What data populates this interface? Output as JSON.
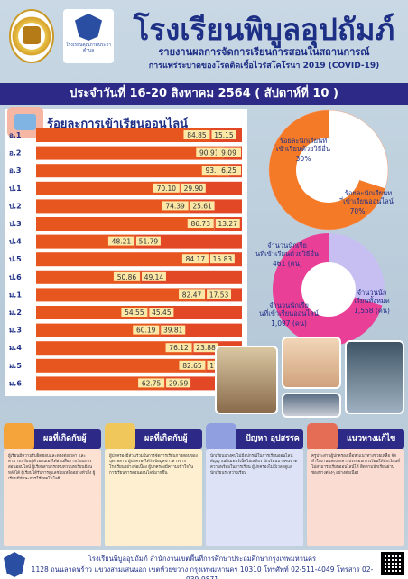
{
  "header": {
    "school_name": "โรงเรียนพิบูลอุปถัมภ์",
    "logo2_text": "โรงเรียนคุณภาพประจำตำบล",
    "report_title": "รายงานผลการจัดการเรียนการสอนในสถานการณ์",
    "report_subtitle": "การแพร่ระบาดของโรคติดเชื้อไวรัสโคโรนา 2019 (COVID-19)"
  },
  "date_band": "ประจำวันที่ 16-20 สิงหาคม 2564 ( สัปดาห์ที่ 10 )",
  "colors": {
    "online": "#e8561f",
    "onsite": "#ef7d3a",
    "dark_bar": "#e24726",
    "donut_pink": "#ea3f97",
    "donut_purple": "#c7bff2",
    "donut_orange": "#f47a28",
    "navy": "#2c2a86"
  },
  "chart_data": [
    {
      "type": "bar",
      "title": "ร้อยละการเข้าเรียนออนไลน์",
      "stacked": true,
      "orientation": "horizontal",
      "categories": [
        "อ.1",
        "อ.2",
        "อ.3",
        "ป.1",
        "ป.2",
        "ป.3",
        "ป.4",
        "ป.5",
        "ป.6",
        "ม.1",
        "ม.2",
        "ม.3",
        "ม.4",
        "ม.5",
        "ม.6"
      ],
      "series": [
        {
          "values": [
            84.85,
            90.91,
            93.75,
            70.1,
            74.39,
            86.73,
            48.21,
            84.17,
            50.86,
            82.47,
            54.55,
            60.19,
            76.12,
            82.65,
            62.75
          ]
        },
        {
          "values": [
            15.15,
            9.09,
            6.25,
            29.9,
            25.61,
            13.27,
            51.79,
            15.83,
            49.14,
            17.53,
            45.45,
            39.81,
            23.88,
            17.35,
            29.59
          ]
        }
      ],
      "labels": {
        "series_a": [
          "84.85",
          "90.91",
          "93.75",
          "70.10",
          "74.39",
          "86.73",
          "48.21",
          "84.17",
          "50.86",
          "82.47",
          "54.55",
          "60.19",
          "76.12",
          "82.65",
          "62.75"
        ],
        "series_b": [
          "15.15",
          "9.09",
          "6.25",
          "29.90",
          "25.61",
          "13.27",
          "51.79",
          "15.83",
          "49.14",
          "17.53",
          "45.45",
          "39.81",
          "23.88",
          "17.35",
          "29.59"
        ]
      }
    },
    {
      "type": "pie",
      "donut": true,
      "slices": [
        {
          "label": "ร้อยละนักเรียนที่เข้าเรียนด้วยวิธีอื่น",
          "value": 30,
          "value_label": "30%"
        },
        {
          "label": "ร้อยละนักเรียนที่เข้าเรียนออนไลน์",
          "value": 70,
          "value_label": "70%"
        }
      ]
    },
    {
      "type": "pie",
      "donut": true,
      "center_label": "จำนวนนักเรียนทั้งหมด",
      "center_value": "1,558 (คน)",
      "slices": [
        {
          "label": "จำนวนนักเรียนที่เข้าเรียนด้วยวิธีอื่น",
          "value": 461,
          "value_label": "461 (คน)"
        },
        {
          "label": "จำนวนนักเรียนที่เข้าเรียนออนไลน์",
          "value": 1097,
          "value_label": "1,097 (คน)"
        }
      ]
    }
  ],
  "info_panels": [
    {
      "title": "ผลที่เกิดกับผู้เรียน",
      "body": "ผู้เรียนมีความรับผิดชอบและตรงต่อเวลา และสามารถเรียนรู้ด้วยตนเองได้ผ่านสื่อการเรียนการสอนออนไลน์ ผู้เรียนสามารถทบทวนบทเรียนย้อนหลังได้ ผู้เรียนได้รับการดูแลช่วยเหลืออย่างทั่วถึง ผู้เรียนมีทักษะการใช้เทคโนโลยี"
    },
    {
      "title": "ผลที่เกิดกับผู้ปกครอง",
      "body": "ผู้ปกครองมีส่วนร่วมในการจัดการเรียนการสอนของบุตรหลาน ผู้ปกครองได้รับข้อมูลข่าวสารจากโรงเรียนอย่างต่อเนื่อง ผู้ปกครองมีความเข้าใจในการเรียนการสอนออนไลน์มากขึ้น"
    },
    {
      "title": "ปัญหา อุปสรรค",
      "body": "นักเรียนบางคนไม่มีอุปกรณ์ในการเรียนออนไลน์ สัญญาณอินเทอร์เน็ตไม่เสถียร นักเรียนบางคนขาดความพร้อมในการเรียน ผู้ปกครองไม่มีเวลาดูแลนักเรียนระหว่างเรียน"
    },
    {
      "title": "แนวทางแก้ไข",
      "body": "ครูประสานผู้ปกครองเพื่อหาแนวทางช่วยเหลือ จัดทำใบงานและเอกสารประกอบการเรียนให้นักเรียนที่ไม่สามารถเรียนออนไลน์ได้ ติดตามนักเรียนผ่านช่องทางต่างๆ อย่างต่อเนื่อง"
    }
  ],
  "footer": {
    "line1": "โรงเรียนพิบูลอุปถัมภ์  สำนักงานเขตพื้นที่การศึกษาประถมศึกษากรุงเทพมหานคร",
    "line2": "1128 ถนนลาดพร้าว แขวงสามเสนนอก เขตห้วยขวาง กรุงเทพมหานคร 10310 โทรศัพท์ 02-511-4049  โทรสาร 02-939-9871"
  }
}
